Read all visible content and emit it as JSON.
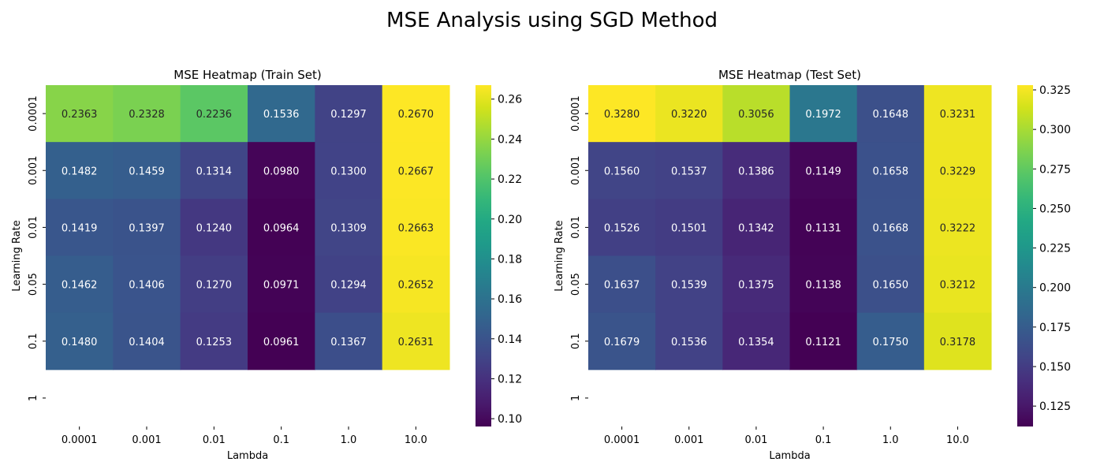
{
  "suptitle": "MSE Analysis using SGD Method",
  "chart_data": [
    {
      "type": "heatmap",
      "title": "MSE Heatmap (Train Set)",
      "xlabel": "Lambda",
      "ylabel": "Learning Rate",
      "x_categories": [
        "0.0001",
        "0.001",
        "0.01",
        "0.1",
        "1.0",
        "10.0"
      ],
      "y_categories": [
        "0.0001",
        "0.001",
        "0.01",
        "0.05",
        "0.1",
        "1"
      ],
      "values": [
        [
          0.2363,
          0.2328,
          0.2236,
          0.1536,
          0.1297,
          0.267
        ],
        [
          0.1482,
          0.1459,
          0.1314,
          0.098,
          0.13,
          0.2667
        ],
        [
          0.1419,
          0.1397,
          0.124,
          0.0964,
          0.1309,
          0.2663
        ],
        [
          0.1462,
          0.1406,
          0.127,
          0.0971,
          0.1294,
          0.2652
        ],
        [
          0.148,
          0.1404,
          0.1253,
          0.0961,
          0.1367,
          0.2631
        ],
        [
          null,
          null,
          null,
          null,
          null,
          null
        ]
      ],
      "colormap": "viridis",
      "color_range": [
        0.0961,
        0.267
      ],
      "colorbar_ticks": [
        "0.10",
        "0.12",
        "0.14",
        "0.16",
        "0.18",
        "0.20",
        "0.22",
        "0.24",
        "0.26"
      ]
    },
    {
      "type": "heatmap",
      "title": "MSE Heatmap (Test Set)",
      "xlabel": "Lambda",
      "ylabel": "Learning Rate",
      "x_categories": [
        "0.0001",
        "0.001",
        "0.01",
        "0.1",
        "1.0",
        "10.0"
      ],
      "y_categories": [
        "0.0001",
        "0.001",
        "0.01",
        "0.05",
        "0.1",
        "1"
      ],
      "values": [
        [
          0.328,
          0.322,
          0.3056,
          0.1972,
          0.1648,
          0.3231
        ],
        [
          0.156,
          0.1537,
          0.1386,
          0.1149,
          0.1658,
          0.3229
        ],
        [
          0.1526,
          0.1501,
          0.1342,
          0.1131,
          0.1668,
          0.3222
        ],
        [
          0.1637,
          0.1539,
          0.1375,
          0.1138,
          0.165,
          0.3212
        ],
        [
          0.1679,
          0.1536,
          0.1354,
          0.1121,
          0.175,
          0.3178
        ],
        [
          null,
          null,
          null,
          null,
          null,
          null
        ]
      ],
      "colormap": "viridis",
      "color_range": [
        0.1121,
        0.328
      ],
      "colorbar_ticks": [
        "0.125",
        "0.150",
        "0.175",
        "0.200",
        "0.225",
        "0.250",
        "0.275",
        "0.300",
        "0.325"
      ]
    }
  ]
}
